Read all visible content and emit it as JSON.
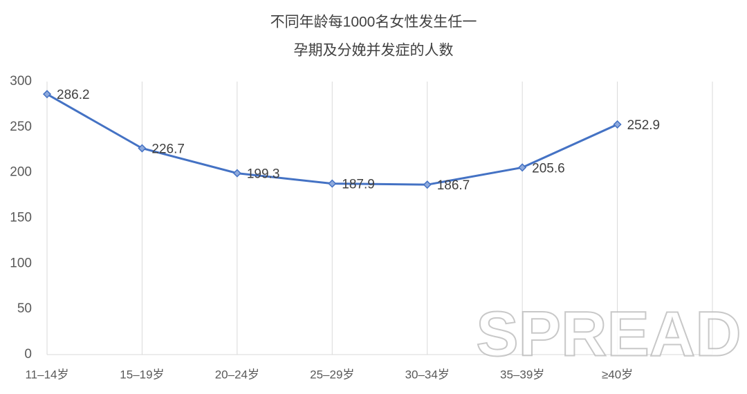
{
  "chart_data": {
    "type": "line",
    "title_lines": [
      "不同年龄每1000名女性发生任一",
      "孕期及分娩并发症的人数"
    ],
    "categories": [
      "11–14岁",
      "15–19岁",
      "20–24岁",
      "25–29岁",
      "30–34岁",
      "35–39岁",
      "≥40岁"
    ],
    "series": [
      {
        "name": "人数",
        "color": "#4472c4",
        "values": [
          286.2,
          226.7,
          199.3,
          187.9,
          186.7,
          205.6,
          252.9
        ]
      }
    ],
    "ylim": [
      0,
      300
    ],
    "yticks": [
      0,
      50,
      100,
      150,
      200,
      250,
      300
    ],
    "grid": true,
    "watermark": "SPREAD"
  }
}
